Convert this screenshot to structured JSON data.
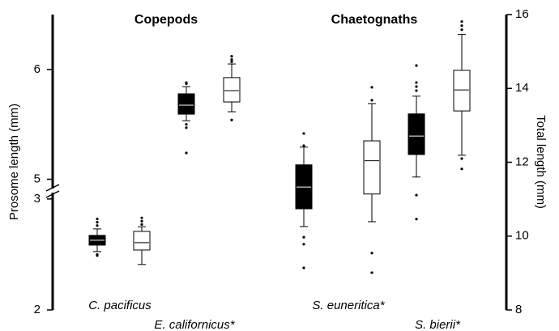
{
  "chart_data": {
    "type": "box",
    "group_titles": [
      "Copepods",
      "Chaetognaths"
    ],
    "ylabel": "Prosome length (mm)",
    "y2label": "Total length (mm)",
    "categories": [
      "C. pacificus",
      "E. californicus*",
      "S. euneritica*",
      "S. bierii*"
    ],
    "category_axis": [
      "y",
      "y",
      "y2",
      "y2"
    ],
    "ylim": [
      2,
      6.5
    ],
    "ybreak": [
      3.05,
      4.93
    ],
    "yticks": [
      2,
      3,
      5,
      6
    ],
    "y2lim": [
      8,
      16
    ],
    "y2ticks": [
      8,
      10,
      12,
      14,
      16
    ],
    "series": [
      {
        "color": "#000000",
        "median_color": "#ffffff",
        "boxes": [
          {
            "low": 2.526,
            "q1": 2.584,
            "median": 2.628,
            "q3": 2.672,
            "high": 2.73,
            "fliers": [
              2.82,
              2.79,
              2.76,
              2.5,
              2.49
            ]
          },
          {
            "low": 5.533,
            "q1": 5.593,
            "median": 5.674,
            "q3": 5.778,
            "high": 5.844,
            "fliers": [
              5.88,
              5.87,
              5.5,
              5.47,
              5.24
            ]
          },
          {
            "low": 10.26,
            "q1": 10.74,
            "median": 11.33,
            "q3": 11.93,
            "high": 12.41,
            "fliers": [
              12.78,
              12.45,
              9.97,
              9.78,
              9.14
            ]
          },
          {
            "low": 11.6,
            "q1": 12.21,
            "median": 12.71,
            "q3": 13.31,
            "high": 13.79,
            "fliers": [
              14.62,
              14.16,
              14.05,
              13.94,
              11.11,
              10.46
            ]
          }
        ]
      },
      {
        "color": "#ffffff",
        "median_color": "#000000",
        "boxes": [
          {
            "low": 2.41,
            "q1": 2.54,
            "median": 2.606,
            "q3": 2.708,
            "high": 2.75,
            "fliers": [
              2.83,
              2.8,
              2.77
            ]
          },
          {
            "low": 5.615,
            "q1": 5.704,
            "median": 5.807,
            "q3": 5.926,
            "high": 6.05,
            "fliers": [
              6.12,
              6.09,
              6.07,
              5.54
            ]
          },
          {
            "low": 10.39,
            "q1": 11.14,
            "median": 12.04,
            "q3": 12.58,
            "high": 13.59,
            "fliers": [
              14.03,
              13.68,
              9.54,
              9.01
            ]
          },
          {
            "low": 12.19,
            "q1": 13.39,
            "median": 13.96,
            "q3": 14.49,
            "high": 15.46,
            "fliers": [
              15.81,
              15.7,
              15.59,
              12.1,
              11.82
            ]
          }
        ]
      }
    ]
  }
}
